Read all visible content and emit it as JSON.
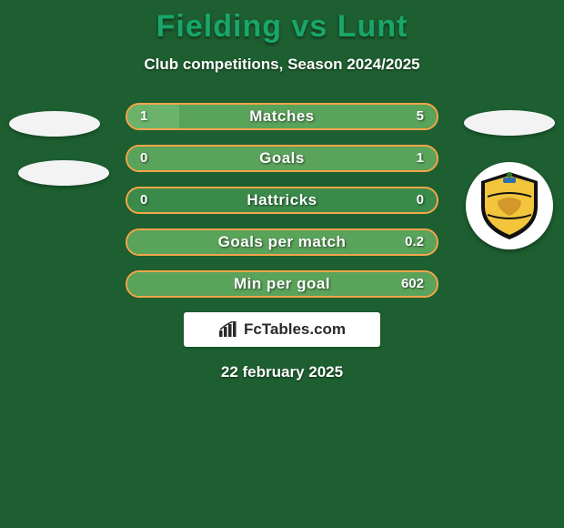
{
  "background_color": "#1d5f30",
  "title": {
    "text": "Fielding vs Lunt",
    "color": "#19a66a",
    "fontsize": 34
  },
  "subtitle": {
    "text": "Club competitions, Season 2024/2025",
    "color": "#ffffff",
    "fontsize": 17
  },
  "date": {
    "text": "22 february 2025",
    "color": "#ffffff",
    "fontsize": 17
  },
  "watermark": {
    "text": "FcTables.com",
    "icon_name": "bar-chart-icon"
  },
  "bar_style": {
    "track_color": "#3a8a4a",
    "border_color": "#f5a64a",
    "left_fill_color": "#6bb36b",
    "right_fill_color": "#5aa35a",
    "label_color": "#ffffff",
    "value_color": "#ffffff",
    "height": 30,
    "border_radius": 15,
    "label_fontsize": 17,
    "value_fontsize": 15
  },
  "bars": [
    {
      "label": "Matches",
      "left_value": "1",
      "right_value": "5",
      "left_pct": 16.7,
      "right_pct": 83.3
    },
    {
      "label": "Goals",
      "left_value": "0",
      "right_value": "1",
      "left_pct": 0,
      "right_pct": 100
    },
    {
      "label": "Hattricks",
      "left_value": "0",
      "right_value": "0",
      "left_pct": 0,
      "right_pct": 0
    },
    {
      "label": "Goals per match",
      "left_value": "",
      "right_value": "0.2",
      "left_pct": 0,
      "right_pct": 100
    },
    {
      "label": "Min per goal",
      "left_value": "",
      "right_value": "602",
      "left_pct": 0,
      "right_pct": 100
    }
  ],
  "badges": {
    "left_player_badge_color": "#f3f3f3",
    "left_club_badge_color": "#f3f3f3",
    "right_player_badge_color": "#f3f3f3",
    "right_club_crest": {
      "bg": "#ffffff",
      "shield_top": "#111111",
      "shield_mid": "#f2c53d",
      "shield_bot": "#111111",
      "accent": "#2e6fae"
    }
  }
}
